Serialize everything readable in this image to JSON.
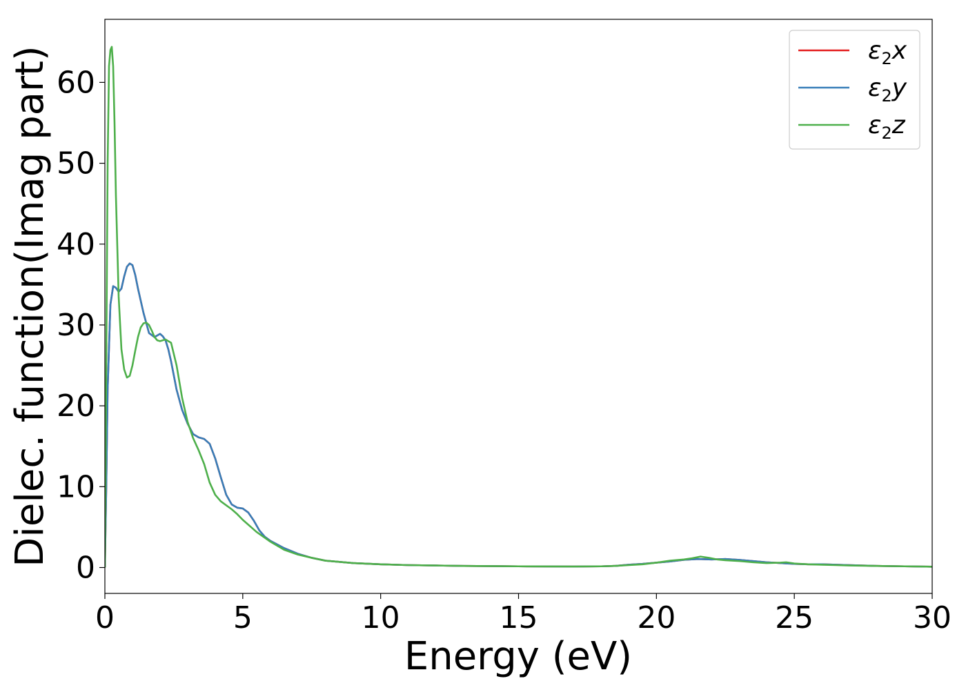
{
  "chart_data": {
    "type": "line",
    "xlabel": "Energy (eV)",
    "ylabel": "Dielec. function(Imag part)",
    "xlim": [
      0,
      30
    ],
    "ylim": [
      -3.2,
      67.8
    ],
    "xticks": [
      0,
      5,
      10,
      15,
      20,
      25,
      30
    ],
    "yticks": [
      0,
      10,
      20,
      30,
      40,
      50,
      60
    ],
    "xtick_labels": [
      "0",
      "5",
      "10",
      "15",
      "20",
      "25",
      "30"
    ],
    "ytick_labels": [
      "0",
      "10",
      "20",
      "30",
      "40",
      "50",
      "60"
    ],
    "grid": false,
    "legend_position": "top-right",
    "series": [
      {
        "name": "ε2x",
        "legend": {
          "greek": "ε",
          "sub": "2",
          "var": "x"
        },
        "color": "#e41a1c",
        "x": [
          0,
          0.05,
          0.1,
          0.2,
          0.3,
          0.4,
          0.5,
          0.6,
          0.7,
          0.8,
          0.9,
          1.0,
          1.1,
          1.2,
          1.4,
          1.6,
          1.8,
          2.0,
          2.1,
          2.2,
          2.3,
          2.4,
          2.6,
          2.8,
          3.0,
          3.2,
          3.4,
          3.6,
          3.8,
          4.0,
          4.2,
          4.4,
          4.6,
          4.8,
          5.0,
          5.2,
          5.4,
          5.6,
          5.8,
          6.0,
          6.5,
          7.0,
          7.5,
          8.0,
          9.0,
          10.0,
          11.0,
          12.0,
          13.0,
          14.0,
          15.0,
          16.0,
          17.0,
          18.0,
          18.5,
          19.0,
          19.5,
          20.0,
          20.5,
          21.0,
          21.5,
          22.0,
          22.5,
          23.0,
          23.5,
          24.0,
          24.5,
          25.0,
          25.5,
          26.0,
          26.5,
          27.0,
          28.0,
          29.0,
          30.0
        ],
        "y": [
          0,
          10,
          22,
          32.5,
          34.8,
          34.6,
          34.1,
          34.5,
          36.0,
          37.2,
          37.6,
          37.4,
          36.2,
          34.5,
          31.5,
          29.0,
          28.5,
          28.9,
          28.6,
          28.1,
          27.0,
          25.5,
          22.0,
          19.5,
          17.8,
          16.5,
          16.1,
          15.9,
          15.3,
          13.5,
          11.2,
          9.0,
          7.8,
          7.4,
          7.3,
          6.8,
          5.8,
          4.6,
          3.8,
          3.3,
          2.4,
          1.7,
          1.2,
          0.85,
          0.55,
          0.4,
          0.3,
          0.25,
          0.2,
          0.18,
          0.15,
          0.13,
          0.12,
          0.15,
          0.2,
          0.35,
          0.45,
          0.6,
          0.75,
          0.95,
          1.05,
          1.0,
          1.05,
          0.95,
          0.8,
          0.65,
          0.55,
          0.45,
          0.4,
          0.4,
          0.35,
          0.3,
          0.2,
          0.15,
          0.1
        ]
      },
      {
        "name": "ε2y",
        "legend": {
          "greek": "ε",
          "sub": "2",
          "var": "y"
        },
        "color": "#377eb8",
        "x": [
          0,
          0.05,
          0.1,
          0.2,
          0.3,
          0.4,
          0.5,
          0.6,
          0.7,
          0.8,
          0.9,
          1.0,
          1.1,
          1.2,
          1.4,
          1.6,
          1.8,
          2.0,
          2.1,
          2.2,
          2.3,
          2.4,
          2.6,
          2.8,
          3.0,
          3.2,
          3.4,
          3.6,
          3.8,
          4.0,
          4.2,
          4.4,
          4.6,
          4.8,
          5.0,
          5.2,
          5.4,
          5.6,
          5.8,
          6.0,
          6.5,
          7.0,
          7.5,
          8.0,
          9.0,
          10.0,
          11.0,
          12.0,
          13.0,
          14.0,
          15.0,
          16.0,
          17.0,
          18.0,
          18.5,
          19.0,
          19.5,
          20.0,
          20.5,
          21.0,
          21.5,
          22.0,
          22.5,
          23.0,
          23.5,
          24.0,
          24.5,
          25.0,
          25.5,
          26.0,
          26.5,
          27.0,
          28.0,
          29.0,
          30.0
        ],
        "y": [
          0,
          10,
          22,
          32.5,
          34.8,
          34.6,
          34.1,
          34.5,
          36.0,
          37.2,
          37.6,
          37.4,
          36.2,
          34.5,
          31.5,
          29.0,
          28.5,
          28.9,
          28.6,
          28.1,
          27.0,
          25.5,
          22.0,
          19.5,
          17.8,
          16.5,
          16.1,
          15.9,
          15.3,
          13.5,
          11.2,
          9.0,
          7.8,
          7.4,
          7.3,
          6.8,
          5.8,
          4.6,
          3.8,
          3.3,
          2.4,
          1.7,
          1.2,
          0.85,
          0.55,
          0.4,
          0.3,
          0.25,
          0.2,
          0.18,
          0.15,
          0.13,
          0.12,
          0.15,
          0.2,
          0.35,
          0.45,
          0.6,
          0.75,
          0.95,
          1.05,
          1.0,
          1.05,
          0.95,
          0.8,
          0.65,
          0.55,
          0.45,
          0.4,
          0.4,
          0.35,
          0.3,
          0.2,
          0.15,
          0.1
        ]
      },
      {
        "name": "ε2z",
        "legend": {
          "greek": "ε",
          "sub": "2",
          "var": "z"
        },
        "color": "#4daf4a",
        "x": [
          0,
          0.05,
          0.1,
          0.15,
          0.2,
          0.25,
          0.3,
          0.35,
          0.4,
          0.5,
          0.6,
          0.7,
          0.8,
          0.9,
          1.0,
          1.1,
          1.2,
          1.3,
          1.4,
          1.5,
          1.6,
          1.7,
          1.8,
          1.9,
          2.0,
          2.2,
          2.4,
          2.6,
          2.8,
          3.0,
          3.2,
          3.4,
          3.6,
          3.8,
          4.0,
          4.2,
          4.4,
          4.6,
          4.8,
          5.0,
          5.5,
          6.0,
          6.5,
          7.0,
          7.5,
          8.0,
          9.0,
          10.0,
          11.0,
          12.0,
          13.0,
          14.0,
          15.0,
          16.0,
          17.0,
          18.0,
          18.5,
          19.0,
          19.5,
          20.0,
          20.5,
          21.0,
          21.3,
          21.6,
          21.9,
          22.2,
          22.5,
          23.0,
          23.5,
          24.0,
          24.5,
          24.7,
          25.0,
          25.5,
          26.0,
          26.5,
          27.0,
          28.0,
          29.0,
          30.0
        ],
        "y": [
          0,
          25,
          50,
          62.0,
          64.0,
          64.4,
          62.0,
          55.0,
          46.0,
          33.5,
          27.0,
          24.5,
          23.5,
          23.7,
          25.0,
          26.8,
          28.5,
          29.7,
          30.2,
          30.3,
          30.0,
          29.3,
          28.5,
          28.1,
          28.0,
          28.2,
          27.8,
          25.0,
          21.0,
          18.0,
          16.0,
          14.5,
          12.8,
          10.5,
          9.0,
          8.2,
          7.7,
          7.2,
          6.6,
          5.9,
          4.4,
          3.2,
          2.2,
          1.6,
          1.2,
          0.85,
          0.55,
          0.4,
          0.3,
          0.25,
          0.2,
          0.18,
          0.15,
          0.13,
          0.12,
          0.15,
          0.2,
          0.3,
          0.4,
          0.6,
          0.85,
          1.0,
          1.15,
          1.35,
          1.2,
          1.0,
          0.9,
          0.8,
          0.65,
          0.55,
          0.6,
          0.65,
          0.5,
          0.4,
          0.35,
          0.3,
          0.25,
          0.2,
          0.15,
          0.1
        ]
      }
    ]
  }
}
